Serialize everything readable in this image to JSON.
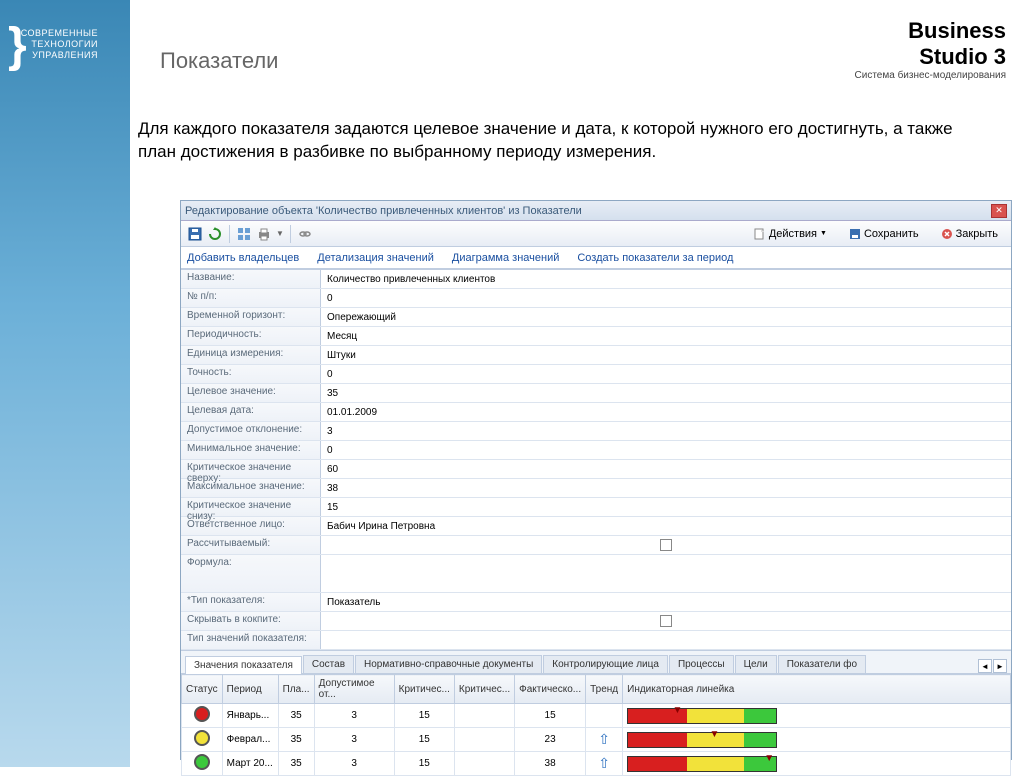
{
  "slide": {
    "sidebar_logo_line1": "СОВРЕМЕННЫЕ",
    "sidebar_logo_line2": "ТЕХНОЛОГИИ",
    "sidebar_logo_line3": "УПРАВЛЕНИЯ",
    "brand_line1": "Business",
    "brand_line2": "Studio 3",
    "brand_tagline": "Система бизнес-моделирования",
    "title": "Показатели",
    "description": "Для каждого показателя задаются целевое значение и дата, к которой нужного его достигнуть, а также план достижения в разбивке по выбранному периоду измерения."
  },
  "window": {
    "title": "Редактирование объекта 'Количество привлеченных клиентов' из Показатели",
    "toolbar": {
      "actions": "Действия",
      "save": "Сохранить",
      "close": "Закрыть"
    },
    "links": {
      "add_owners": "Добавить владельцев",
      "detail_values": "Детализация значений",
      "chart_values": "Диаграмма значений",
      "create_period": "Создать показатели за период"
    },
    "form": [
      {
        "label": "Название:",
        "value": "Количество привлеченных клиентов"
      },
      {
        "label": "№ п/п:",
        "value": "0"
      },
      {
        "label": "Временной горизонт:",
        "value": "Опережающий"
      },
      {
        "label": "Периодичность:",
        "value": "Месяц"
      },
      {
        "label": "Единица измерения:",
        "value": "Штуки"
      },
      {
        "label": "Точность:",
        "value": "0"
      },
      {
        "label": "Целевое значение:",
        "value": "35"
      },
      {
        "label": "Целевая дата:",
        "value": "01.01.2009"
      },
      {
        "label": "Допустимое отклонение:",
        "value": "3"
      },
      {
        "label": "Минимальное значение:",
        "value": "0"
      },
      {
        "label": "Критическое значение сверху:",
        "value": "60"
      },
      {
        "label": "Максимальное значение:",
        "value": "38"
      },
      {
        "label": "Критическое значение снизу:",
        "value": "15"
      },
      {
        "label": "Ответственное лицо:",
        "value": "Бабич Ирина Петровна"
      },
      {
        "label": "Рассчитываемый:",
        "value": "",
        "checkbox": true
      },
      {
        "label": "Формула:",
        "value": "",
        "tall": true
      },
      {
        "label": "*Тип показателя:",
        "value": "Показатель"
      },
      {
        "label": "Скрывать в кокпите:",
        "value": "",
        "checkbox": true
      },
      {
        "label": "Тип значений показателя:",
        "value": ""
      }
    ],
    "tabs": [
      "Значения показателя",
      "Состав",
      "Нормативно-справочные документы",
      "Контролирующие лица",
      "Процессы",
      "Цели",
      "Показатели фо"
    ],
    "active_tab": 0,
    "table": {
      "columns": [
        "Статус",
        "Период",
        "Пла...",
        "Допустимое от...",
        "Критичес...",
        "Критичес...",
        "Фактическо...",
        "Тренд",
        "Индикаторная линейка"
      ],
      "rows": [
        {
          "status_color": "#d81f1f",
          "period": "Январь...",
          "plan": "35",
          "deviation": "3",
          "crit1": "15",
          "crit2": "",
          "actual": "15",
          "trend": "",
          "indicator_pos": 0.3
        },
        {
          "status_color": "#f2e23a",
          "period": "Феврал...",
          "plan": "35",
          "deviation": "3",
          "crit1": "15",
          "crit2": "",
          "actual": "23",
          "trend": "up",
          "indicator_pos": 0.55
        },
        {
          "status_color": "#3cc83c",
          "period": "Март 20...",
          "plan": "35",
          "deviation": "3",
          "crit1": "15",
          "crit2": "",
          "actual": "38",
          "trend": "up",
          "indicator_pos": 0.92
        }
      ],
      "indicator_segments": [
        {
          "color": "#d81f1f",
          "width": 0.4
        },
        {
          "color": "#f2e23a",
          "width": 0.38
        },
        {
          "color": "#3cc83c",
          "width": 0.22
        }
      ]
    }
  }
}
